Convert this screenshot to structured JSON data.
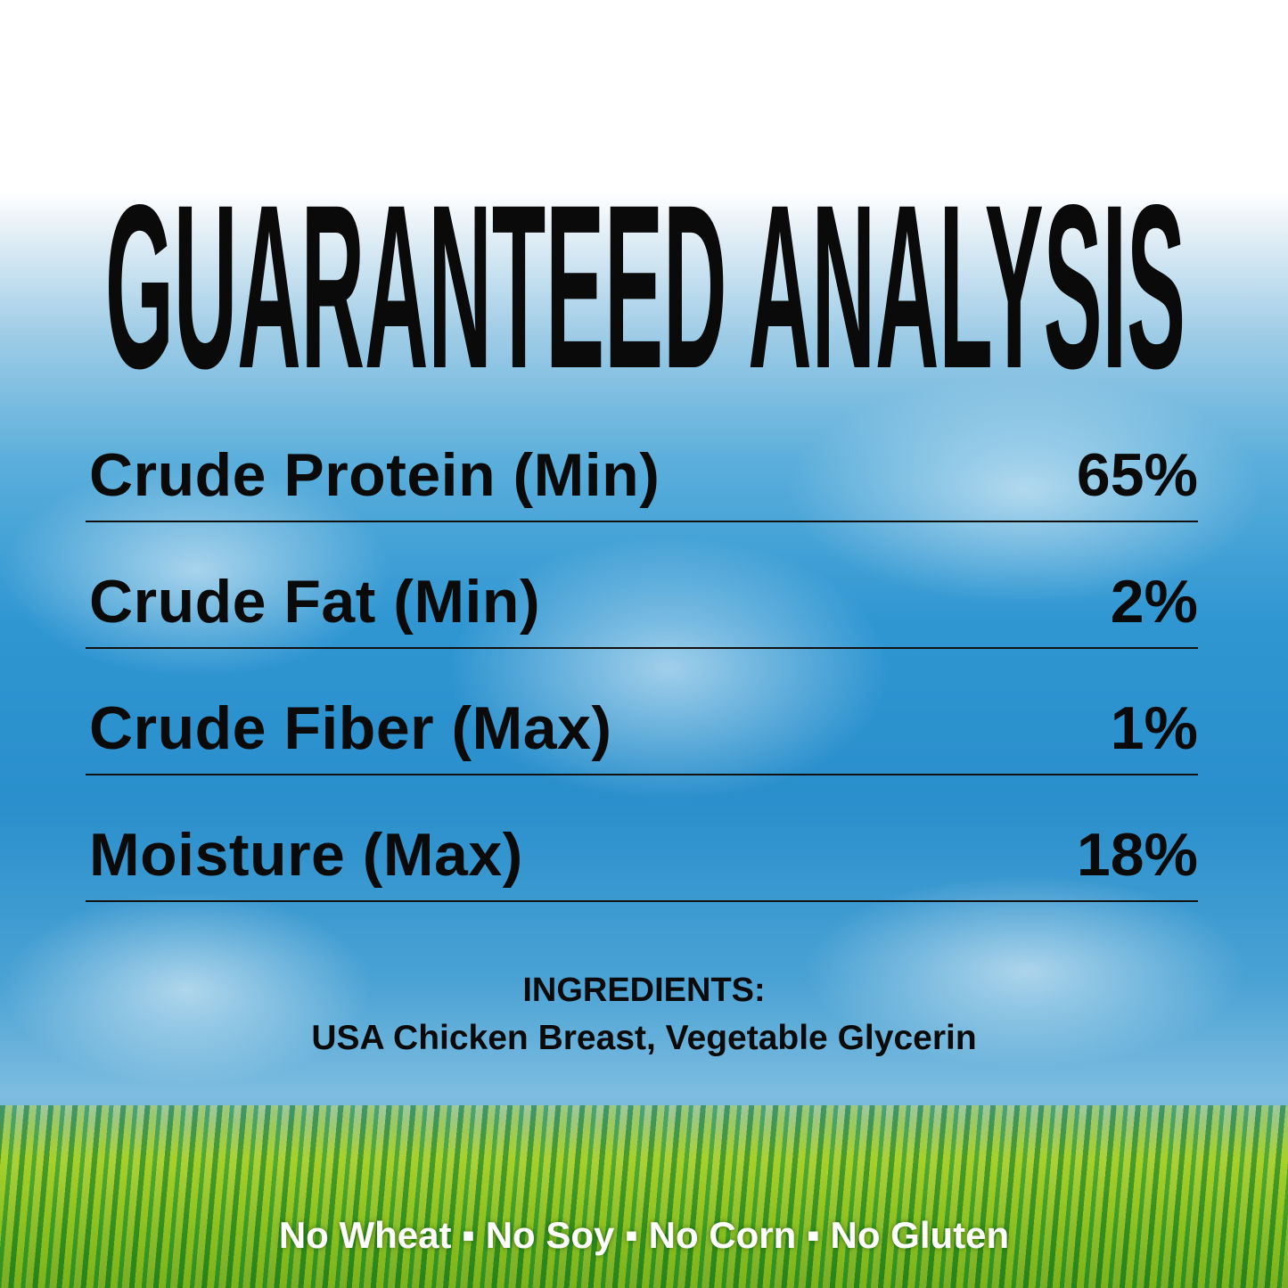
{
  "title": "GUARANTEED ANALYSIS",
  "analysis": [
    {
      "label": "Crude Protein (Min)",
      "value": "65%"
    },
    {
      "label": "Crude Fat (Min)",
      "value": "2%"
    },
    {
      "label": "Crude Fiber (Max)",
      "value": "1%"
    },
    {
      "label": "Moisture (Max)",
      "value": "18%"
    }
  ],
  "ingredients": {
    "heading": "INGREDIENTS:",
    "text": "USA Chicken Breast, Vegetable Glycerin"
  },
  "free_from": "No Wheat ▪ No Soy ▪ No Corn ▪ No Gluten",
  "colors": {
    "sky": "#2f96d2",
    "grass": "#8cc63f",
    "text": "#0a0a0a"
  }
}
